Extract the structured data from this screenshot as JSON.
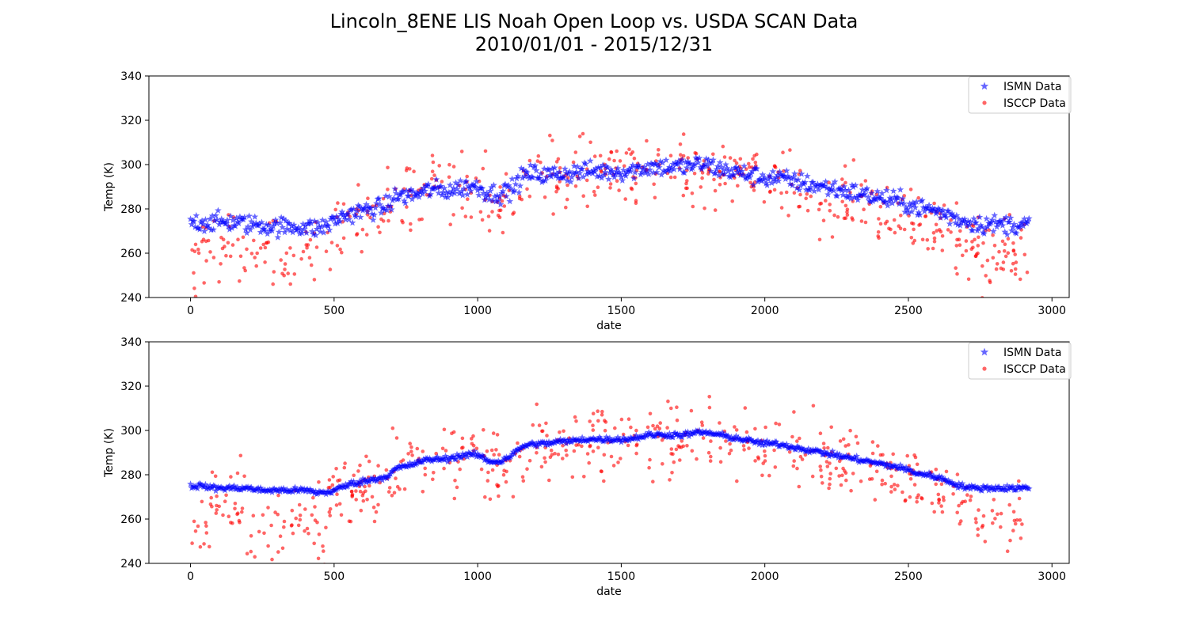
{
  "figure": {
    "title_line1": "Lincoln_8ENE LIS Noah Open Loop vs. USDA SCAN Data",
    "title_line2": "2010/01/01 - 2015/12/31"
  },
  "colors": {
    "ismn": "#0000ff",
    "isccp": "#ff0000",
    "axes": "#000000",
    "legend_border": "#cccccc"
  },
  "chart_data": [
    {
      "type": "scatter",
      "xlabel": "date",
      "ylabel": "Temp (K)",
      "xlim": [
        -145,
        3060
      ],
      "ylim": [
        240,
        340
      ],
      "xticks": [
        0,
        500,
        1000,
        1500,
        2000,
        2500,
        3000
      ],
      "yticks": [
        240,
        260,
        280,
        300,
        320,
        340
      ],
      "grid": false,
      "legend_position": "top-right",
      "series": [
        {
          "name": "ISMN Data",
          "marker": "star",
          "color": "#0000ff",
          "x": [
            0,
            40,
            80,
            120,
            160,
            200,
            240,
            280,
            320,
            360,
            400,
            440,
            480,
            520,
            560,
            600,
            640,
            680,
            720,
            760,
            800,
            840,
            880,
            920,
            960,
            1000,
            1040,
            1080,
            1120,
            1160,
            1200,
            1240,
            1280,
            1320,
            1360,
            1400,
            1440,
            1480,
            1520,
            1560,
            1600,
            1640,
            1680,
            1720,
            1760,
            1800,
            1840,
            1880,
            1920,
            1960,
            2000,
            2040,
            2080,
            2120,
            2160,
            2200,
            2240,
            2280,
            2320,
            2360,
            2400,
            2440,
            2480,
            2520,
            2560,
            2600,
            2640,
            2680,
            2720,
            2760,
            2800,
            2840,
            2880,
            2920
          ],
          "y": [
            274,
            274,
            274,
            274,
            274,
            273,
            273,
            272,
            272,
            272,
            272,
            271,
            273,
            276,
            278,
            279,
            280,
            281,
            286,
            286,
            287,
            289,
            288,
            289,
            290,
            290,
            287,
            287,
            289,
            295,
            296,
            295,
            296,
            296,
            297,
            297,
            297,
            297,
            297,
            298,
            299,
            299,
            299,
            299,
            300,
            300,
            298,
            297,
            296,
            295,
            294,
            294,
            293,
            292,
            291,
            290,
            289,
            288,
            287,
            286,
            285,
            284,
            283,
            281,
            280,
            279,
            277,
            275,
            274,
            273,
            273,
            273,
            273,
            273
          ],
          "spread": 3
        },
        {
          "name": "ISCCP Data",
          "marker": "circle",
          "color": "#ff0000",
          "x": [
            0,
            40,
            80,
            120,
            160,
            200,
            240,
            280,
            320,
            360,
            400,
            440,
            480,
            520,
            560,
            600,
            640,
            680,
            720,
            760,
            800,
            840,
            880,
            920,
            960,
            1000,
            1040,
            1080,
            1120,
            1160,
            1200,
            1240,
            1280,
            1320,
            1360,
            1400,
            1440,
            1480,
            1520,
            1560,
            1600,
            1640,
            1680,
            1720,
            1760,
            1800,
            1840,
            1880,
            1920,
            1960,
            2000,
            2040,
            2080,
            2120,
            2160,
            2200,
            2240,
            2280,
            2320,
            2360,
            2400,
            2440,
            2480,
            2520,
            2560,
            2600,
            2640,
            2680,
            2720,
            2760,
            2800,
            2840,
            2880,
            2920
          ],
          "y": [
            257,
            258,
            262,
            266,
            266,
            264,
            260,
            258,
            257,
            258,
            259,
            257,
            264,
            270,
            272,
            275,
            274,
            278,
            284,
            289,
            288,
            287,
            286,
            287,
            288,
            289,
            283,
            281,
            284,
            290,
            295,
            293,
            294,
            294,
            295,
            296,
            296,
            296,
            296,
            296,
            297,
            297,
            297,
            297,
            298,
            298,
            296,
            295,
            294,
            293,
            292,
            291,
            291,
            290,
            287,
            286,
            285,
            284,
            283,
            282,
            281,
            279,
            278,
            276,
            275,
            274,
            272,
            268,
            264,
            260,
            259,
            259,
            259,
            260
          ],
          "spread": 8
        }
      ]
    },
    {
      "type": "scatter",
      "xlabel": "date",
      "ylabel": "Temp (K)",
      "xlim": [
        -145,
        3060
      ],
      "ylim": [
        240,
        340
      ],
      "xticks": [
        0,
        500,
        1000,
        1500,
        2000,
        2500,
        3000
      ],
      "yticks": [
        240,
        260,
        280,
        300,
        320,
        340
      ],
      "grid": false,
      "legend_position": "top-right",
      "series": [
        {
          "name": "ISMN Data",
          "marker": "star",
          "color": "#0000ff",
          "x": [
            0,
            40,
            80,
            120,
            160,
            200,
            240,
            280,
            320,
            360,
            400,
            440,
            480,
            520,
            560,
            600,
            640,
            680,
            720,
            760,
            800,
            840,
            880,
            920,
            960,
            1000,
            1040,
            1080,
            1120,
            1160,
            1200,
            1240,
            1280,
            1320,
            1360,
            1400,
            1440,
            1480,
            1520,
            1560,
            1600,
            1640,
            1680,
            1720,
            1760,
            1800,
            1840,
            1880,
            1920,
            1960,
            2000,
            2040,
            2080,
            2120,
            2160,
            2200,
            2240,
            2280,
            2320,
            2360,
            2400,
            2440,
            2480,
            2520,
            2560,
            2600,
            2640,
            2680,
            2720,
            2760,
            2800,
            2840,
            2880,
            2920
          ],
          "y": [
            275,
            275,
            274,
            274,
            274,
            274,
            273,
            273,
            273,
            273,
            273,
            272,
            272,
            274,
            276,
            277,
            278,
            279,
            283,
            284,
            286,
            287,
            287,
            288,
            289,
            289,
            286,
            286,
            289,
            293,
            294,
            294,
            295,
            295,
            296,
            296,
            296,
            296,
            296,
            297,
            298,
            298,
            298,
            298,
            299,
            299,
            298,
            297,
            296,
            295,
            294,
            294,
            293,
            292,
            291,
            290,
            289,
            288,
            287,
            286,
            285,
            284,
            283,
            281,
            280,
            279,
            277,
            275,
            274,
            274,
            274,
            274,
            274,
            274
          ],
          "spread": 1.2
        },
        {
          "name": "ISCCP Data",
          "marker": "circle",
          "color": "#ff0000",
          "x": [
            0,
            40,
            80,
            120,
            160,
            200,
            240,
            280,
            320,
            360,
            400,
            440,
            480,
            520,
            560,
            600,
            640,
            680,
            720,
            760,
            800,
            840,
            880,
            920,
            960,
            1000,
            1040,
            1080,
            1120,
            1160,
            1200,
            1240,
            1280,
            1320,
            1360,
            1400,
            1440,
            1480,
            1520,
            1560,
            1600,
            1640,
            1680,
            1720,
            1760,
            1800,
            1840,
            1880,
            1920,
            1960,
            2000,
            2040,
            2080,
            2120,
            2160,
            2200,
            2240,
            2280,
            2320,
            2360,
            2400,
            2440,
            2480,
            2520,
            2560,
            2600,
            2640,
            2680,
            2720,
            2760,
            2800,
            2840,
            2880,
            2920
          ],
          "y": [
            257,
            258,
            262,
            266,
            266,
            264,
            260,
            258,
            257,
            258,
            259,
            257,
            264,
            270,
            272,
            275,
            274,
            278,
            284,
            289,
            288,
            287,
            286,
            287,
            288,
            289,
            283,
            281,
            284,
            290,
            295,
            293,
            294,
            294,
            295,
            296,
            296,
            296,
            296,
            296,
            297,
            297,
            297,
            297,
            298,
            298,
            296,
            295,
            294,
            293,
            292,
            291,
            291,
            290,
            287,
            286,
            285,
            284,
            283,
            282,
            281,
            279,
            278,
            276,
            275,
            274,
            272,
            268,
            264,
            260,
            259,
            259,
            259,
            260
          ],
          "spread": 8
        }
      ]
    }
  ]
}
